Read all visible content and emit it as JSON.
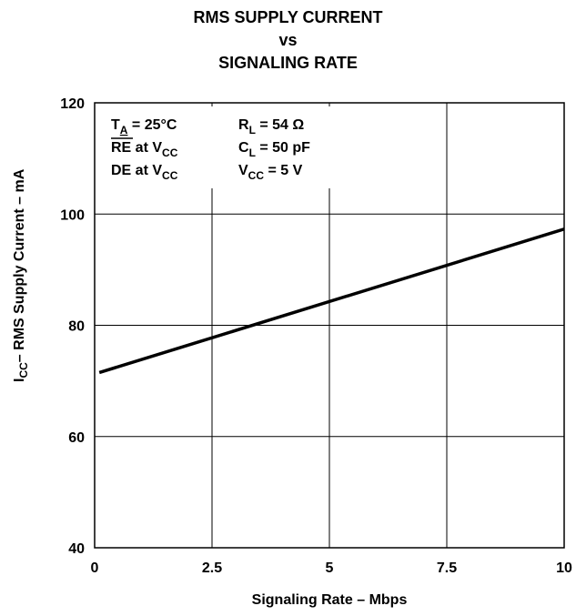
{
  "chart_data": {
    "type": "line",
    "title": [
      "RMS SUPPLY CURRENT",
      "vs",
      "SIGNALING RATE"
    ],
    "xlabel": "Signaling Rate – Mbps",
    "ylabel": {
      "prefix": "I",
      "sub": "CC",
      "rest": "– RMS Supply Current – mA"
    },
    "xlim": [
      0,
      10
    ],
    "ylim": [
      40,
      120
    ],
    "xticks": [
      0,
      2.5,
      5,
      7.5,
      10
    ],
    "xtick_labels": [
      "0",
      "2.5",
      "5",
      "7.5",
      "10"
    ],
    "yticks": [
      40,
      60,
      80,
      100,
      120
    ],
    "ytick_labels": [
      "40",
      "60",
      "80",
      "100",
      "120"
    ],
    "grid": true,
    "series": [
      {
        "x": [
          0.1,
          10
        ],
        "y": [
          71.5,
          97.3
        ]
      }
    ],
    "annotations": {
      "col1": [
        {
          "main": "T",
          "sub": "A",
          "rest": " = 25°C",
          "underline_sub": true
        },
        {
          "main": "RE",
          "overline": true,
          "rest": " at V",
          "sub2": "CC"
        },
        {
          "main": "DE",
          "rest": " at V",
          "sub2": "CC"
        }
      ],
      "col2": [
        {
          "main": "R",
          "sub": "L",
          "rest": " = 54 Ω"
        },
        {
          "main": "C",
          "sub": "L",
          "rest": " = 50 pF"
        },
        {
          "main": "V",
          "sub": "CC",
          "rest": " = 5 V"
        }
      ]
    }
  }
}
